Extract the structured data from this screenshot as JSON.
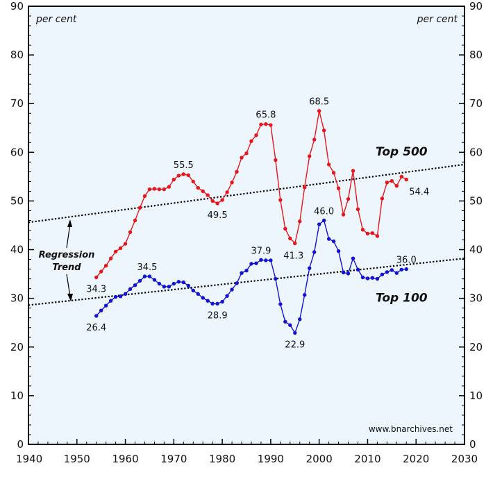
{
  "chart_data": {
    "type": "line",
    "unit_label_left": "per cent",
    "unit_label_right": "per cent",
    "xlim": [
      1940,
      2030
    ],
    "ylim": [
      0,
      90
    ],
    "x_ticks": [
      1940,
      1950,
      1960,
      1970,
      1980,
      1990,
      2000,
      2010,
      2020,
      2030
    ],
    "y_ticks": [
      0,
      10,
      20,
      30,
      40,
      50,
      60,
      70,
      80,
      90
    ],
    "grid": false,
    "background": "#eef6fd",
    "series": [
      {
        "name": "Top 500",
        "color": "#e8161b",
        "x": [
          1954,
          1955,
          1956,
          1957,
          1958,
          1959,
          1960,
          1961,
          1962,
          1963,
          1964,
          1965,
          1966,
          1967,
          1968,
          1969,
          1970,
          1971,
          1972,
          1973,
          1974,
          1975,
          1976,
          1977,
          1978,
          1979,
          1980,
          1981,
          1982,
          1983,
          1984,
          1985,
          1986,
          1987,
          1988,
          1989,
          1990,
          1991,
          1992,
          1993,
          1994,
          1995,
          1996,
          1997,
          1998,
          1999,
          2000,
          2001,
          2002,
          2003,
          2004,
          2005,
          2006,
          2007,
          2008,
          2009,
          2010,
          2011,
          2012,
          2013,
          2014,
          2015,
          2016,
          2017,
          2018
        ],
        "y": [
          34.3,
          35.5,
          36.7,
          38.2,
          39.6,
          40.3,
          41.2,
          43.6,
          46.0,
          48.6,
          51.0,
          52.4,
          52.5,
          52.4,
          52.4,
          52.9,
          54.4,
          55.2,
          55.5,
          55.3,
          54.0,
          52.7,
          52.0,
          51.2,
          50.0,
          49.5,
          50.2,
          51.8,
          53.8,
          56.0,
          58.9,
          59.8,
          62.3,
          63.5,
          65.7,
          65.8,
          65.6,
          58.4,
          50.2,
          44.3,
          42.3,
          41.3,
          45.8,
          52.8,
          59.2,
          62.6,
          68.5,
          64.5,
          57.5,
          55.8,
          52.6,
          47.2,
          50.4,
          56.2,
          48.3,
          44.1,
          43.3,
          43.4,
          42.8,
          50.5,
          53.8,
          54.1,
          53.1,
          55.0,
          54.4
        ]
      },
      {
        "name": "Top 100",
        "color": "#1212d2",
        "x": [
          1954,
          1955,
          1956,
          1957,
          1958,
          1959,
          1960,
          1961,
          1962,
          1963,
          1964,
          1965,
          1966,
          1967,
          1968,
          1969,
          1970,
          1971,
          1972,
          1973,
          1974,
          1975,
          1976,
          1977,
          1978,
          1979,
          1980,
          1981,
          1982,
          1983,
          1984,
          1985,
          1986,
          1987,
          1988,
          1989,
          1990,
          1991,
          1992,
          1993,
          1994,
          1995,
          1996,
          1997,
          1998,
          1999,
          2000,
          2001,
          2002,
          2003,
          2004,
          2005,
          2006,
          2007,
          2008,
          2009,
          2010,
          2011,
          2012,
          2013,
          2014,
          2015,
          2016,
          2017,
          2018
        ],
        "y": [
          26.4,
          27.5,
          28.5,
          29.5,
          30.3,
          30.4,
          30.9,
          31.9,
          32.7,
          33.6,
          34.5,
          34.5,
          33.8,
          33.0,
          32.4,
          32.4,
          33.0,
          33.4,
          33.3,
          32.6,
          31.6,
          30.9,
          30.1,
          29.5,
          28.9,
          28.9,
          29.3,
          30.5,
          31.8,
          33.1,
          35.2,
          35.7,
          37.1,
          37.2,
          37.9,
          37.8,
          37.8,
          34.0,
          28.8,
          25.2,
          24.5,
          22.9,
          25.7,
          30.7,
          36.2,
          39.5,
          45.2,
          46.0,
          42.2,
          41.7,
          39.7,
          35.3,
          35.1,
          38.2,
          35.9,
          34.3,
          34.1,
          34.2,
          34.0,
          34.9,
          35.4,
          35.8,
          35.2,
          35.9,
          36.0
        ]
      }
    ],
    "trend_lines": [
      {
        "name": "Top 500 regression trend",
        "x": [
          1940,
          2030
        ],
        "y": [
          45.6,
          57.5
        ]
      },
      {
        "name": "Top 100 regression trend",
        "x": [
          1940,
          2030
        ],
        "y": [
          28.6,
          38.2
        ]
      }
    ],
    "data_labels": [
      {
        "text": "34.3",
        "x": 1954,
        "y": 34.3,
        "anchor": "below"
      },
      {
        "text": "55.5",
        "x": 1972,
        "y": 55.5,
        "anchor": "above"
      },
      {
        "text": "49.5",
        "x": 1979,
        "y": 49.5,
        "anchor": "below"
      },
      {
        "text": "65.8",
        "x": 1989,
        "y": 65.8,
        "anchor": "above"
      },
      {
        "text": "41.3",
        "x": 1995,
        "y": 41.3,
        "anchor": "below-left"
      },
      {
        "text": "68.5",
        "x": 2000,
        "y": 68.5,
        "anchor": "above"
      },
      {
        "text": "54.4",
        "x": 2018,
        "y": 54.4,
        "anchor": "below-right"
      },
      {
        "text": "26.4",
        "x": 1954,
        "y": 26.4,
        "anchor": "below"
      },
      {
        "text": "34.5",
        "x": 1964.5,
        "y": 34.5,
        "anchor": "above"
      },
      {
        "text": "28.9",
        "x": 1979,
        "y": 28.9,
        "anchor": "below"
      },
      {
        "text": "37.9",
        "x": 1988,
        "y": 37.9,
        "anchor": "above"
      },
      {
        "text": "22.9",
        "x": 1995,
        "y": 22.9,
        "anchor": "below"
      },
      {
        "text": "46.0",
        "x": 2001,
        "y": 46.0,
        "anchor": "above"
      },
      {
        "text": "36.0",
        "x": 2018,
        "y": 36.0,
        "anchor": "above"
      }
    ],
    "series_labels": [
      {
        "text": "Top 500",
        "x": 2017,
        "y": 59.3
      },
      {
        "text": "Top 100",
        "x": 2017,
        "y": 29.3
      }
    ],
    "annotation": {
      "lines": [
        "Regression",
        "Trend"
      ]
    },
    "credit": "www.bnarchives.net"
  }
}
